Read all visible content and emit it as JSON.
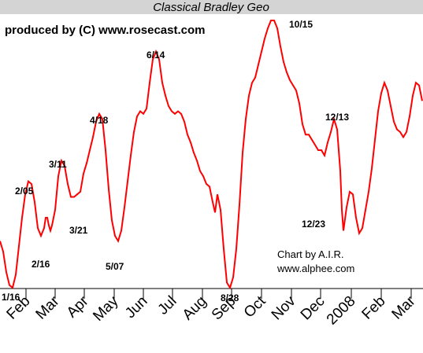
{
  "chart_data": {
    "type": "line",
    "title": "Classical Bradley Geo",
    "producer": "produced by (C) www.rosecast.com",
    "credit_line1": "Chart by A.I.R.",
    "credit_line2": "www.alphee.com",
    "x_tick_labels": [
      "Feb",
      "Mar",
      "Apr",
      "May",
      "Jun",
      "Jul",
      "Aug",
      "Sep",
      "Oct",
      "Nov",
      "Dec",
      "2008",
      "Feb",
      "Mar"
    ],
    "annotations": [
      {
        "label": "1/16"
      },
      {
        "label": "2/05"
      },
      {
        "label": "2/16"
      },
      {
        "label": "3/11"
      },
      {
        "label": "3/21"
      },
      {
        "label": "4/18"
      },
      {
        "label": "5/07"
      },
      {
        "label": "6/14"
      },
      {
        "label": "8/28"
      },
      {
        "label": "10/15"
      },
      {
        "label": "12/13"
      },
      {
        "label": "12/23"
      }
    ],
    "series": [
      {
        "color": "#ff0000",
        "description_free": true,
        "values": [
          [
            0,
            0.18
          ],
          [
            4,
            0.14
          ],
          [
            8,
            0.06
          ],
          [
            12,
            0.01
          ],
          [
            16,
            0.0
          ],
          [
            20,
            0.05
          ],
          [
            24,
            0.16
          ],
          [
            28,
            0.27
          ],
          [
            32,
            0.36
          ],
          [
            36,
            0.41
          ],
          [
            40,
            0.4
          ],
          [
            44,
            0.33
          ],
          [
            48,
            0.23
          ],
          [
            52,
            0.2
          ],
          [
            56,
            0.23
          ],
          [
            58,
            0.27
          ],
          [
            60,
            0.27
          ],
          [
            62,
            0.24
          ],
          [
            64,
            0.22
          ],
          [
            66,
            0.24
          ],
          [
            70,
            0.3
          ],
          [
            74,
            0.43
          ],
          [
            78,
            0.49
          ],
          [
            82,
            0.47
          ],
          [
            86,
            0.4
          ],
          [
            90,
            0.35
          ],
          [
            94,
            0.35
          ],
          [
            98,
            0.36
          ],
          [
            102,
            0.37
          ],
          [
            106,
            0.44
          ],
          [
            110,
            0.48
          ],
          [
            114,
            0.53
          ],
          [
            118,
            0.58
          ],
          [
            122,
            0.64
          ],
          [
            126,
            0.67
          ],
          [
            130,
            0.65
          ],
          [
            134,
            0.53
          ],
          [
            138,
            0.38
          ],
          [
            142,
            0.26
          ],
          [
            146,
            0.2
          ],
          [
            150,
            0.18
          ],
          [
            154,
            0.22
          ],
          [
            158,
            0.31
          ],
          [
            162,
            0.41
          ],
          [
            166,
            0.51
          ],
          [
            170,
            0.6
          ],
          [
            174,
            0.66
          ],
          [
            178,
            0.68
          ],
          [
            182,
            0.67
          ],
          [
            186,
            0.69
          ],
          [
            190,
            0.79
          ],
          [
            194,
            0.88
          ],
          [
            198,
            0.91
          ],
          [
            202,
            0.88
          ],
          [
            206,
            0.79
          ],
          [
            210,
            0.74
          ],
          [
            214,
            0.7
          ],
          [
            218,
            0.68
          ],
          [
            222,
            0.67
          ],
          [
            226,
            0.68
          ],
          [
            230,
            0.67
          ],
          [
            234,
            0.64
          ],
          [
            238,
            0.59
          ],
          [
            242,
            0.56
          ],
          [
            246,
            0.52
          ],
          [
            250,
            0.49
          ],
          [
            254,
            0.45
          ],
          [
            258,
            0.43
          ],
          [
            262,
            0.4
          ],
          [
            266,
            0.39
          ],
          [
            270,
            0.33
          ],
          [
            273,
            0.29
          ],
          [
            276,
            0.36
          ],
          [
            280,
            0.3
          ],
          [
            284,
            0.15
          ],
          [
            288,
            0.02
          ],
          [
            292,
            0.0
          ],
          [
            296,
            0.04
          ],
          [
            300,
            0.15
          ],
          [
            304,
            0.32
          ],
          [
            308,
            0.52
          ],
          [
            312,
            0.65
          ],
          [
            316,
            0.74
          ],
          [
            320,
            0.79
          ],
          [
            324,
            0.81
          ],
          [
            328,
            0.86
          ],
          [
            332,
            0.91
          ],
          [
            336,
            0.96
          ],
          [
            340,
            1.0
          ],
          [
            344,
            1.03
          ],
          [
            348,
            1.03
          ],
          [
            352,
            1.0
          ],
          [
            356,
            0.93
          ],
          [
            360,
            0.87
          ],
          [
            364,
            0.83
          ],
          [
            368,
            0.8
          ],
          [
            372,
            0.78
          ],
          [
            376,
            0.76
          ],
          [
            380,
            0.71
          ],
          [
            384,
            0.63
          ],
          [
            388,
            0.59
          ],
          [
            392,
            0.59
          ],
          [
            396,
            0.57
          ],
          [
            400,
            0.55
          ],
          [
            404,
            0.53
          ],
          [
            408,
            0.53
          ],
          [
            412,
            0.51
          ],
          [
            416,
            0.56
          ],
          [
            420,
            0.6
          ],
          [
            424,
            0.65
          ],
          [
            428,
            0.61
          ],
          [
            432,
            0.45
          ],
          [
            434,
            0.3
          ],
          [
            436,
            0.22
          ],
          [
            440,
            0.31
          ],
          [
            444,
            0.37
          ],
          [
            448,
            0.36
          ],
          [
            452,
            0.27
          ],
          [
            456,
            0.21
          ],
          [
            460,
            0.23
          ],
          [
            464,
            0.3
          ],
          [
            468,
            0.37
          ],
          [
            472,
            0.46
          ],
          [
            476,
            0.57
          ],
          [
            480,
            0.68
          ],
          [
            484,
            0.75
          ],
          [
            488,
            0.79
          ],
          [
            492,
            0.76
          ],
          [
            496,
            0.7
          ],
          [
            500,
            0.64
          ],
          [
            504,
            0.61
          ],
          [
            508,
            0.6
          ],
          [
            512,
            0.58
          ],
          [
            516,
            0.6
          ],
          [
            520,
            0.66
          ],
          [
            524,
            0.74
          ],
          [
            528,
            0.79
          ],
          [
            532,
            0.78
          ],
          [
            536,
            0.72
          ]
        ]
      }
    ]
  }
}
